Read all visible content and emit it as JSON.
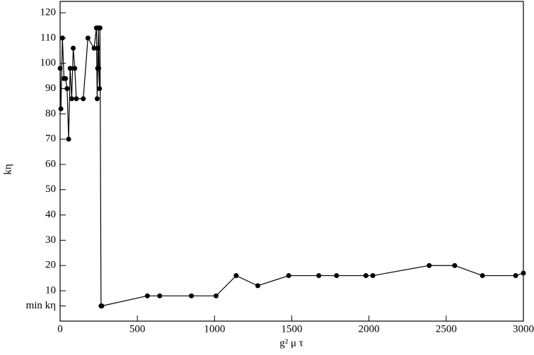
{
  "chart_data": {
    "type": "line",
    "x_label": "g² μ τ",
    "y_label": "kη",
    "x": [
      0,
      5,
      15,
      25,
      35,
      45,
      55,
      65,
      75,
      85,
      95,
      105,
      150,
      180,
      220,
      235,
      240,
      243,
      245,
      248,
      250,
      255,
      258,
      265,
      270,
      565,
      645,
      850,
      1010,
      1140,
      1280,
      1480,
      1675,
      1790,
      1980,
      2025,
      2390,
      2555,
      2735,
      2950,
      3000
    ],
    "series": [
      {
        "color": "#000000",
        "values": [
          98,
          82,
          110,
          94,
          94,
          90,
          70,
          98,
          86,
          106,
          98,
          86,
          86,
          110,
          106,
          114,
          86,
          98,
          106,
          114,
          98,
          90,
          114,
          4,
          4,
          8,
          8,
          8,
          8,
          16,
          12,
          16,
          16,
          16,
          16,
          16,
          20,
          20,
          16,
          16,
          17
        ]
      }
    ],
    "xlim": [
      0,
      3000
    ],
    "xticks": [
      0,
      500,
      1000,
      1500,
      2000,
      2500,
      3000
    ],
    "ylim": [
      -2,
      124.5
    ],
    "yticks": [
      {
        "value": 4,
        "label": "min kη"
      },
      10,
      20,
      30,
      40,
      50,
      60,
      70,
      80,
      90,
      100,
      110,
      120
    ]
  }
}
